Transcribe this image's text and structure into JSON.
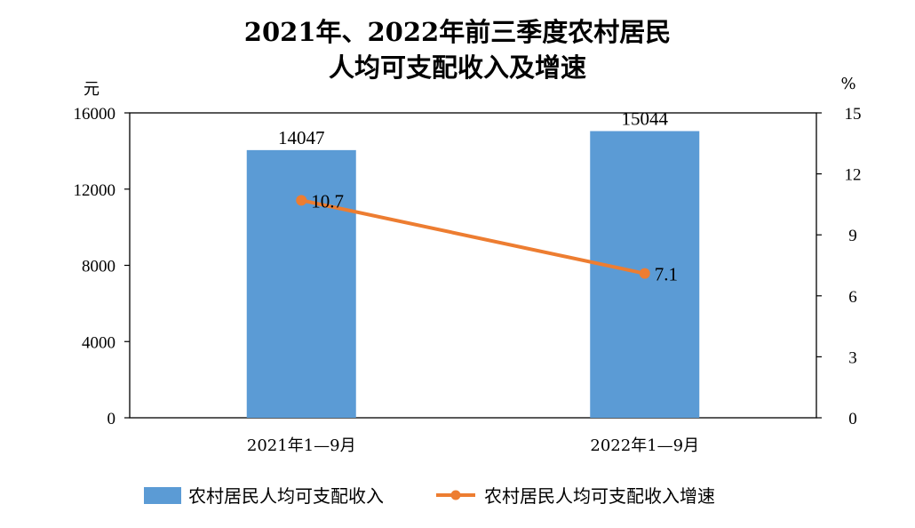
{
  "chart_data": {
    "type": "bar",
    "title_lines": [
      "2021年、2022年前三季度农村居民",
      "人均可支配收入及增速"
    ],
    "categories": [
      "2021年1—9月",
      "2022年1—9月"
    ],
    "series": [
      {
        "name": "农村居民人均可支配收入",
        "kind": "bar",
        "axis": "left",
        "values": [
          14047,
          15044
        ],
        "color": "#5B9BD5"
      },
      {
        "name": "农村居民人均可支配收入增速",
        "kind": "line",
        "axis": "right",
        "values": [
          10.7,
          7.1
        ],
        "color": "#ED7D31"
      }
    ],
    "data_labels": {
      "bar": [
        "14047",
        "15044"
      ],
      "line": [
        "10.7",
        "7.1"
      ]
    },
    "y_left": {
      "unit": "元",
      "ylim": [
        0,
        16000
      ],
      "ticks": [
        "0",
        "4000",
        "8000",
        "12000",
        "16000"
      ]
    },
    "y_right": {
      "unit": "%",
      "ylim": [
        0,
        15
      ],
      "ticks": [
        "0",
        "3",
        "6",
        "9",
        "12",
        "15"
      ]
    },
    "grid": false,
    "legend_position": "bottom"
  }
}
